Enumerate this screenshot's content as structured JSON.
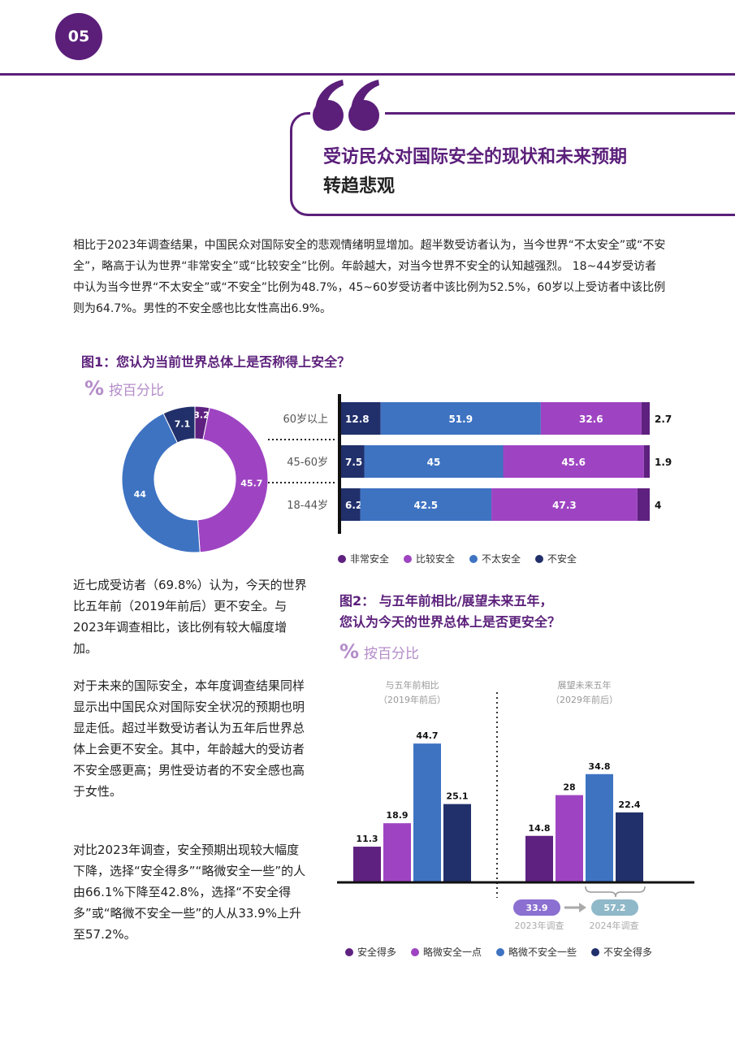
{
  "page": {
    "number": "05"
  },
  "heading": {
    "line1": "受访民众对国际安全的现状和未来预期",
    "line2": "转趋悲观"
  },
  "intro": "相比于2023年调查结果，中国民众对国际安全的悲观情绪明显增加。超半数受访者认为，当今世界“不太安全”或“不安全”，略高于认为世界“非常安全”或“比较安全”比例。年龄越大，对当今世界不安全的认知越强烈。 18~44岁受访者中认为当今世界“不太安全”或“不安全”比例为48.7%，45~60岁受访者中该比例为52.5%，60岁以上受访者中该比例则为64.7%。男性的不安全感也比女性高出6.9%。",
  "fig1": {
    "title": "图1：您认为当前世界总体上是否称得上安全？",
    "unit_icon": "%",
    "unit": "按百分比"
  },
  "fig2": {
    "title_line1": "图2： 与五年前相比/展望未来五年，",
    "title_line2": "您认为今天的世界总体上是否更安全？",
    "unit_icon": "%",
    "unit": "按百分比"
  },
  "side_text": {
    "p1": "近七成受访者（69.8%）认为，今天的世界比五年前（2019年前后）更不安全。与2023年调查相比，该比例有较大幅度增加。",
    "p2": "对于未来的国际安全，本年度调查结果同样显示出中国民众对国际安全状况的预期也明显走低。超过半数受访者认为五年后世界总体上会更不安全。其中，年龄越大的受访者不安全感更高；男性受访者的不安全感也高于女性。",
    "p3": "对比2023年调查，安全预期出现较大幅度下降，选择“安全得多”“略微安全一些”的人由66.1%下降至42.8%，选择“不安全得多”或“略微不安全一些”的人从33.9%上升至57.2%。"
  },
  "colors": {
    "brand": "#5b1f7a",
    "very_safe": "#5f2180",
    "fairly_safe": "#9e44c2",
    "not_very_safe": "#3e73c2",
    "unsafe": "#21306b",
    "badge_2023": "#8b6fd1",
    "badge_2024": "#8fb8c8"
  },
  "chart_data": [
    {
      "type": "pie",
      "variant": "donut",
      "categories": [
        "非常安全",
        "比较安全",
        "不太安全",
        "不安全"
      ],
      "values": [
        3.2,
        45.7,
        44,
        7.1
      ],
      "labels": [
        "3.2",
        "45.7",
        "44",
        "7.1"
      ]
    },
    {
      "type": "bar",
      "orientation": "horizontal",
      "stacked": true,
      "categories": [
        "60岁以上",
        "45-60岁",
        "18-44岁"
      ],
      "series": [
        {
          "name": "不安全",
          "values": [
            12.8,
            7.5,
            6.2
          ]
        },
        {
          "name": "不太安全",
          "values": [
            51.9,
            45,
            42.5
          ]
        },
        {
          "name": "比较安全",
          "values": [
            32.6,
            45.6,
            47.3
          ]
        },
        {
          "name": "非常安全",
          "values": [
            2.7,
            1.9,
            4
          ]
        }
      ],
      "labels": [
        [
          "12.8",
          "51.9",
          "32.6",
          "2.7"
        ],
        [
          "7.5",
          "45",
          "45.6",
          "1.9"
        ],
        [
          "6.2",
          "42.5",
          "47.3",
          "4"
        ]
      ],
      "legend": [
        "非常安全",
        "比较安全",
        "不太安全",
        "不安全"
      ]
    },
    {
      "type": "bar",
      "groups": [
        {
          "label_line1": "与五年前相比",
          "label_line2": "（2019年前后）",
          "values": [
            11.3,
            18.9,
            44.7,
            25.1
          ],
          "labels": [
            "11.3",
            "18.9",
            "44.7",
            "25.1"
          ]
        },
        {
          "label_line1": "展望未来五年",
          "label_line2": "（2029年前后）",
          "values": [
            14.8,
            28,
            34.8,
            22.4
          ],
          "labels": [
            "14.8",
            "28",
            "34.8",
            "22.4"
          ]
        }
      ],
      "series_names": [
        "安全得多",
        "略微安全一点",
        "略微不安全一些",
        "不安全得多"
      ],
      "comparison": {
        "from_value": "33.9",
        "from_label": "2023年调查",
        "to_value": "57.2",
        "to_label": "2024年调查"
      }
    }
  ]
}
